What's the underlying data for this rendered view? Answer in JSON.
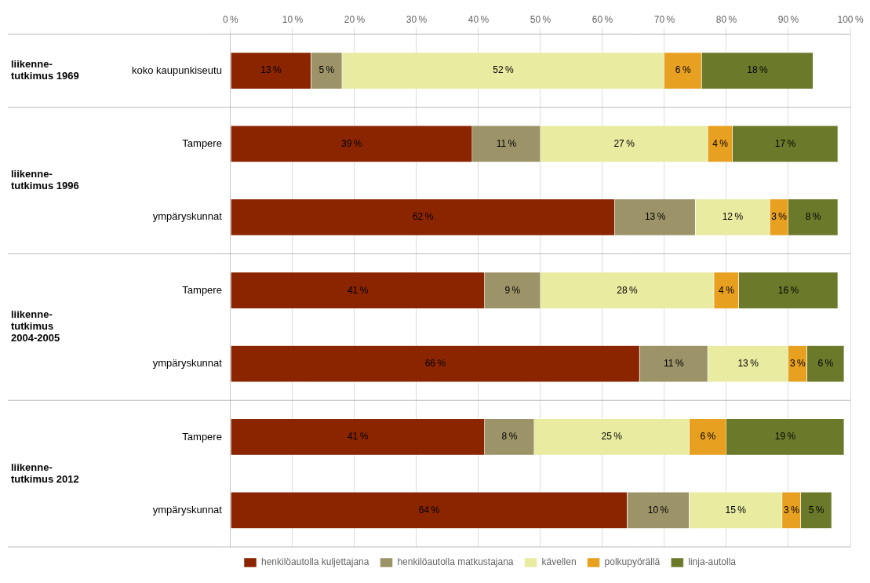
{
  "chart_data": {
    "type": "bar",
    "orientation": "horizontal",
    "stacked": true,
    "grid": true,
    "legend": "bottom",
    "data_labels": true,
    "categories": [
      "koko kaupunkiseutu",
      "Tampere",
      "ympäryskunnat",
      "Tampere",
      "ympäryskunnat",
      "Tampere",
      "ympäryskunnat"
    ],
    "groups": [
      {
        "label": "liikenne-\ntutkimus 1969",
        "rows": 1
      },
      {
        "label": "liikenne-\ntutkimus 1996",
        "rows": 2
      },
      {
        "label": "liikenne-\ntutkimus\n2004-2005",
        "rows": 2
      },
      {
        "label": "liikenne-\ntutkimus 2012",
        "rows": 2
      }
    ],
    "series": [
      {
        "name": "henkilöautolla kuljettajana",
        "color": "#8B2500",
        "values": [
          13,
          39,
          62,
          41,
          66,
          41,
          64
        ],
        "value_labels": [
          "13 %",
          "39 %",
          "62 %",
          "41 %",
          "66 %",
          "41 %",
          "64 %"
        ]
      },
      {
        "name": "henkilöautolla matkustajana",
        "color": "#9C9468",
        "values": [
          5,
          11,
          13,
          9,
          11,
          8,
          10
        ],
        "value_labels": [
          "5 %",
          "11 %",
          "13 %",
          "9 %",
          "11 %",
          "8 %",
          "10 %"
        ]
      },
      {
        "name": "kävellen",
        "color": "#E8EBA0",
        "values": [
          52,
          27,
          12,
          28,
          13,
          25,
          15
        ],
        "value_labels": [
          "52 %",
          "27 %",
          "12 %",
          "28 %",
          "13 %",
          "25 %",
          "15 %"
        ]
      },
      {
        "name": "polkupyörällä",
        "color": "#E8A020",
        "values": [
          6,
          4,
          3,
          4,
          3,
          6,
          3
        ],
        "value_labels": [
          "6 %",
          "4 %",
          "3 %",
          "4 %",
          "3 %",
          "6 %",
          "3 %"
        ]
      },
      {
        "name": "linja-autolla",
        "color": "#6B7A2A",
        "values": [
          18,
          17,
          8,
          16,
          6,
          19,
          5
        ],
        "value_labels": [
          "18 %",
          "17 %",
          "8 %",
          "16 %",
          "6 %",
          "19 %",
          "5 %"
        ]
      }
    ],
    "xlim": [
      0,
      100
    ],
    "xticks": [
      {
        "value": 0,
        "label": "0 %"
      },
      {
        "value": 10,
        "label": "10 %"
      },
      {
        "value": 20,
        "label": "20 %"
      },
      {
        "value": 30,
        "label": "30 %"
      },
      {
        "value": 40,
        "label": "40 %"
      },
      {
        "value": 50,
        "label": "50 %"
      },
      {
        "value": 60,
        "label": "60 %"
      },
      {
        "value": 70,
        "label": "70 %"
      },
      {
        "value": 80,
        "label": "80 %"
      },
      {
        "value": 90,
        "label": "90 %"
      },
      {
        "value": 100,
        "label": "100 %"
      }
    ]
  }
}
